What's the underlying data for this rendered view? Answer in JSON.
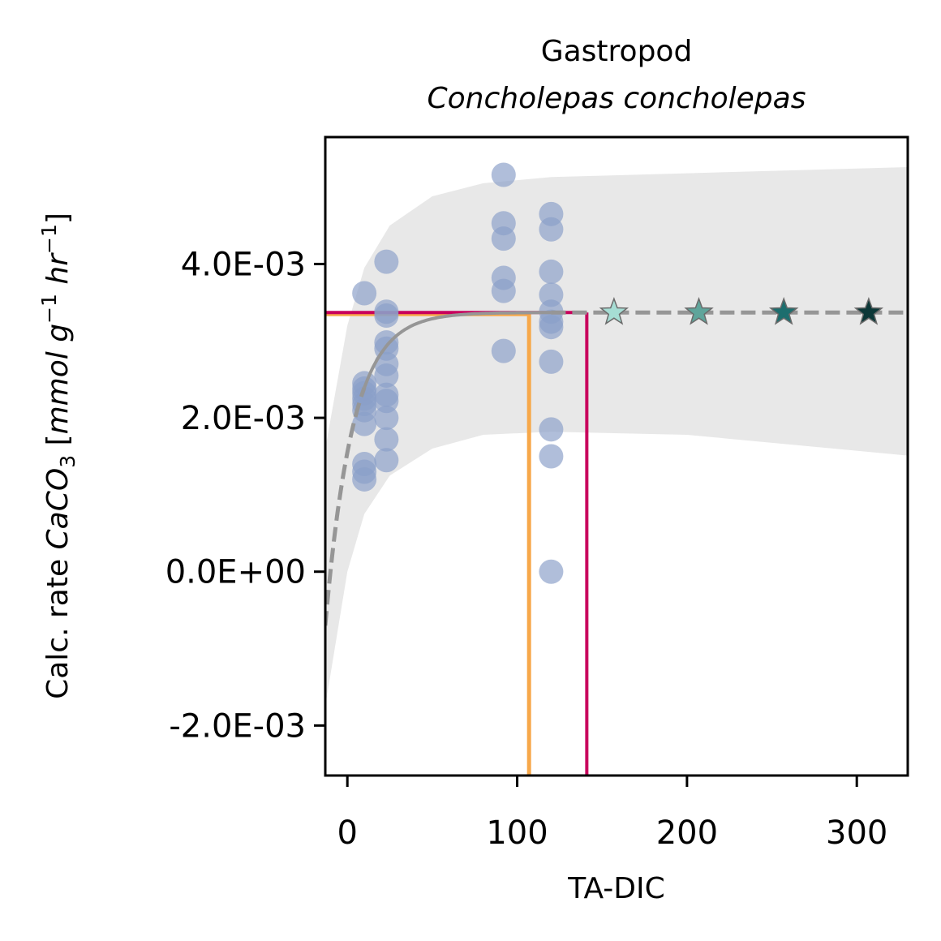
{
  "chart_data": {
    "type": "scatter",
    "title": "Gastropod",
    "subtitle": "Concholepas concholepas",
    "xlabel": "TA-DIC",
    "ylabel": {
      "prefix": "Calc. rate ",
      "species": "CaCO",
      "species_sub": "3",
      "unit_open": " [",
      "unit_mmol": "mmol g",
      "unit_g_exp": "−1",
      "unit_hr": " hr",
      "unit_hr_exp": "−1",
      "unit_close": "]"
    },
    "xlim": [
      -13,
      330
    ],
    "ylim": [
      -0.00265,
      0.00565
    ],
    "xticks": [
      0,
      100,
      200,
      300
    ],
    "xtick_labels": [
      "0",
      "100",
      "200",
      "300"
    ],
    "yticks": [
      -0.002,
      0.0,
      0.002,
      0.004
    ],
    "ytick_labels": [
      "-2.0E-03",
      "0.0E+00",
      "2.0E-03",
      "4.0E-03"
    ],
    "colors": {
      "observations": "#8a9fc8",
      "fit": "#969696",
      "ci_band": "#e8e8e8",
      "orange_threshold": "#f7a84a",
      "magenta_threshold": "#c8005c",
      "stars": [
        "#a6ddd4",
        "#5fa59b",
        "#1d6e6e",
        "#0c3838"
      ]
    },
    "observations": [
      {
        "x": 10,
        "y": 0.00362
      },
      {
        "x": 10,
        "y": 0.00245
      },
      {
        "x": 10,
        "y": 0.00238
      },
      {
        "x": 10,
        "y": 0.00232
      },
      {
        "x": 10,
        "y": 0.00225
      },
      {
        "x": 10,
        "y": 0.00218
      },
      {
        "x": 10,
        "y": 0.0021
      },
      {
        "x": 10,
        "y": 0.00192
      },
      {
        "x": 10,
        "y": 0.0014
      },
      {
        "x": 10,
        "y": 0.0013
      },
      {
        "x": 10,
        "y": 0.0012
      },
      {
        "x": 23,
        "y": 0.00403
      },
      {
        "x": 23,
        "y": 0.00338
      },
      {
        "x": 23,
        "y": 0.00333
      },
      {
        "x": 23,
        "y": 0.00298
      },
      {
        "x": 23,
        "y": 0.0029
      },
      {
        "x": 23,
        "y": 0.0027
      },
      {
        "x": 23,
        "y": 0.00255
      },
      {
        "x": 23,
        "y": 0.0023
      },
      {
        "x": 23,
        "y": 0.00222
      },
      {
        "x": 23,
        "y": 0.002
      },
      {
        "x": 23,
        "y": 0.00172
      },
      {
        "x": 23,
        "y": 0.00145
      },
      {
        "x": 92,
        "y": 0.00516
      },
      {
        "x": 92,
        "y": 0.00453
      },
      {
        "x": 92,
        "y": 0.00433
      },
      {
        "x": 92,
        "y": 0.00382
      },
      {
        "x": 92,
        "y": 0.00365
      },
      {
        "x": 92,
        "y": 0.00287
      },
      {
        "x": 120,
        "y": 0.00465
      },
      {
        "x": 120,
        "y": 0.00445
      },
      {
        "x": 120,
        "y": 0.0039
      },
      {
        "x": 120,
        "y": 0.0036
      },
      {
        "x": 120,
        "y": 0.00338
      },
      {
        "x": 120,
        "y": 0.00325
      },
      {
        "x": 120,
        "y": 0.00318
      },
      {
        "x": 120,
        "y": 0.00273
      },
      {
        "x": 120,
        "y": 0.00185
      },
      {
        "x": 120,
        "y": 0.0015
      },
      {
        "x": 120,
        "y": 0.0
      }
    ],
    "fit": {
      "asymptote": 0.00337,
      "at_x_min": -0.0007,
      "decay_rate": 0.062,
      "solid_from_x": 10,
      "solid_to_x": 120,
      "dashed_from_x": 120
    },
    "ci_band": {
      "upper": [
        [
          -13,
          0.0016
        ],
        [
          0,
          0.0032
        ],
        [
          10,
          0.00395
        ],
        [
          25,
          0.0045
        ],
        [
          50,
          0.00488
        ],
        [
          80,
          0.00505
        ],
        [
          120,
          0.00513
        ],
        [
          200,
          0.00518
        ],
        [
          330,
          0.00526
        ]
      ],
      "lower": [
        [
          -13,
          -0.00175
        ],
        [
          0,
          0.0
        ],
        [
          10,
          0.00075
        ],
        [
          25,
          0.00125
        ],
        [
          50,
          0.0016
        ],
        [
          80,
          0.00178
        ],
        [
          120,
          0.00182
        ],
        [
          200,
          0.00178
        ],
        [
          330,
          0.00151
        ]
      ]
    },
    "thresholds": [
      {
        "color": "orange_threshold",
        "x": 107,
        "y": 0.00337
      },
      {
        "color": "magenta_threshold",
        "x": 141,
        "y": 0.00337
      }
    ],
    "stars": [
      {
        "x": 157,
        "y": 0.00337
      },
      {
        "x": 207,
        "y": 0.00337
      },
      {
        "x": 257,
        "y": 0.00337
      },
      {
        "x": 307,
        "y": 0.00337
      }
    ]
  }
}
